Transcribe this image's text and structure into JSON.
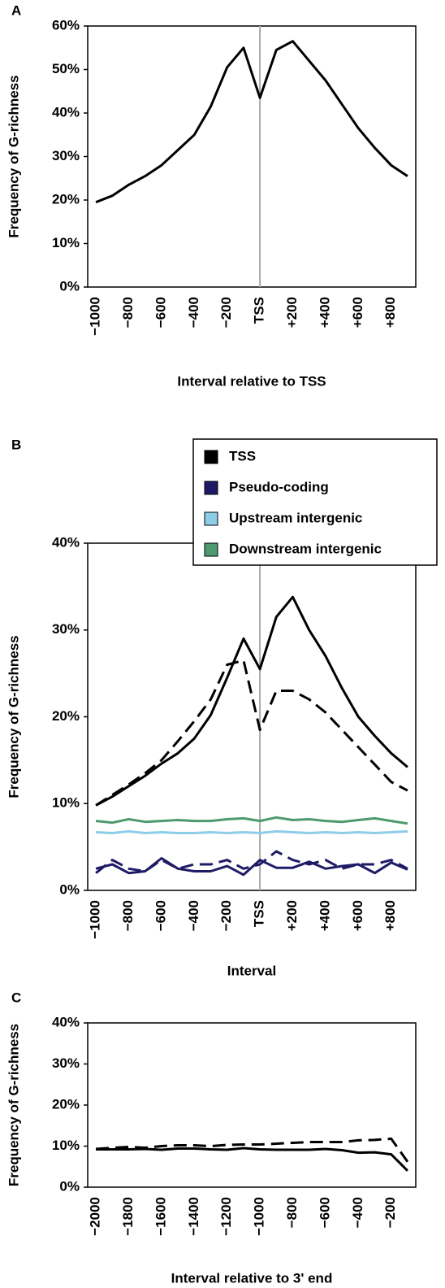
{
  "chart_data": [
    {
      "type": "line",
      "panel": "A",
      "y_label": "Frequency of G-richness",
      "x_label": "Interval relative to TSS",
      "categories": [
        "−1000",
        null,
        "−800",
        null,
        "−600",
        null,
        "−400",
        null,
        "−200",
        null,
        "TSS",
        null,
        "+200",
        null,
        "+400",
        null,
        "+600",
        null,
        "+800",
        null
      ],
      "reference_line": {
        "category": "TSS",
        "color": "#aaaaaa"
      },
      "ylim": [
        0,
        60
      ],
      "yticks": [
        {
          "value": 0,
          "label": "0%"
        },
        {
          "value": 10,
          "label": "10%"
        },
        {
          "value": 20,
          "label": "20%"
        },
        {
          "value": 30,
          "label": "30%"
        },
        {
          "value": 40,
          "label": "40%"
        },
        {
          "value": 50,
          "label": "50%"
        },
        {
          "value": 60,
          "label": "60%"
        }
      ],
      "series": [
        {
          "color": "#000000",
          "dashed": false,
          "values": [
            19.5,
            21,
            23.5,
            25.5,
            28,
            31.5,
            35,
            41.5,
            50.5,
            55,
            43.5,
            54.5,
            56.5,
            52,
            47.5,
            42,
            36.5,
            32,
            28,
            25.5
          ]
        }
      ]
    },
    {
      "type": "line",
      "panel": "B",
      "y_label": "Frequency of G-richness",
      "x_label": "Interval",
      "categories": [
        "−1000",
        null,
        "−800",
        null,
        "−600",
        null,
        "−400",
        null,
        "−200",
        null,
        "TSS",
        null,
        "+200",
        null,
        "+400",
        null,
        "+600",
        null,
        "+800",
        null
      ],
      "reference_line": {
        "category": "TSS",
        "color": "#aaaaaa"
      },
      "ylim": [
        0,
        40
      ],
      "yticks": [
        {
          "value": 0,
          "label": "0%"
        },
        {
          "value": 10,
          "label": "10%"
        },
        {
          "value": 20,
          "label": "20%"
        },
        {
          "value": 30,
          "label": "30%"
        },
        {
          "value": 40,
          "label": "40%"
        }
      ],
      "legend": "upper right",
      "series": [
        {
          "name": "TSS",
          "color": "#000000",
          "dashed": false,
          "values": [
            9.8,
            10.8,
            12,
            13.2,
            14.6,
            15.8,
            17.5,
            20.2,
            24.5,
            29,
            25.5,
            31.5,
            33.8,
            30,
            27,
            23.3,
            20,
            17.8,
            15.8,
            14.2
          ]
        },
        {
          "color": "#000000",
          "dashed": true,
          "values": [
            9.8,
            11,
            12.2,
            13.5,
            15,
            17.2,
            19.5,
            22,
            26,
            26.5,
            18.5,
            23,
            23,
            22,
            20.5,
            18.5,
            16.5,
            14.5,
            12.5,
            11.5
          ]
        },
        {
          "name": "Pseudo-coding",
          "color": "#1f1a66",
          "dashed": false,
          "values": [
            2.5,
            3,
            2,
            2.2,
            3.7,
            2.5,
            2.2,
            2.2,
            2.8,
            1.8,
            3.5,
            2.6,
            2.6,
            3.3,
            2.5,
            2.8,
            3,
            2,
            3.2,
            2.4
          ]
        },
        {
          "color": "#1f1a66",
          "dashed": true,
          "values": [
            2,
            3.5,
            2.5,
            2.2,
            3.5,
            2.5,
            3,
            3,
            3.5,
            2.5,
            3,
            4.5,
            3.5,
            3,
            3.5,
            2.5,
            3,
            3,
            3.5,
            2.5
          ]
        },
        {
          "name": "Upstream intergenic",
          "color": "#8ecde8",
          "dashed": false,
          "values": [
            6.7,
            6.6,
            6.8,
            6.6,
            6.7,
            6.6,
            6.6,
            6.7,
            6.6,
            6.7,
            6.6,
            6.8,
            6.7,
            6.6,
            6.7,
            6.6,
            6.7,
            6.6,
            6.7,
            6.8
          ]
        },
        {
          "name": "Downstream intergenic",
          "color": "#4d9a6e",
          "dashed": false,
          "values": [
            8,
            7.8,
            8.2,
            7.9,
            8,
            8.1,
            8,
            8,
            8.2,
            8.3,
            8,
            8.4,
            8.1,
            8.2,
            8,
            7.9,
            8.1,
            8.3,
            8,
            7.7
          ]
        }
      ]
    },
    {
      "type": "line",
      "panel": "C",
      "y_label": "Frequency of G-richness",
      "x_label": "Interval relative to 3' end",
      "categories": [
        "−2000",
        null,
        "−1800",
        null,
        "−1600",
        null,
        "−1400",
        null,
        "−1200",
        null,
        "−1000",
        null,
        "−800",
        null,
        "−600",
        null,
        "−400",
        null,
        "−200",
        null
      ],
      "ylim": [
        0,
        40
      ],
      "yticks": [
        {
          "value": 0,
          "label": "0%"
        },
        {
          "value": 10,
          "label": "10%"
        },
        {
          "value": 20,
          "label": "20%"
        },
        {
          "value": 30,
          "label": "30%"
        },
        {
          "value": 40,
          "label": "40%"
        }
      ],
      "series": [
        {
          "color": "#000000",
          "dashed": false,
          "values": [
            9.2,
            9.2,
            9.2,
            9.3,
            9.1,
            9.4,
            9.4,
            9.2,
            9.1,
            9.5,
            9.2,
            9.1,
            9.1,
            9.1,
            9.3,
            9.0,
            8.4,
            8.5,
            8.0,
            4.0
          ]
        },
        {
          "color": "#000000",
          "dashed": true,
          "values": [
            9.3,
            9.6,
            9.8,
            9.6,
            10,
            10.2,
            10.2,
            10,
            10.3,
            10.4,
            10.4,
            10.6,
            10.8,
            11,
            11,
            11,
            11.4,
            11.5,
            11.8,
            6.2
          ]
        }
      ]
    }
  ]
}
